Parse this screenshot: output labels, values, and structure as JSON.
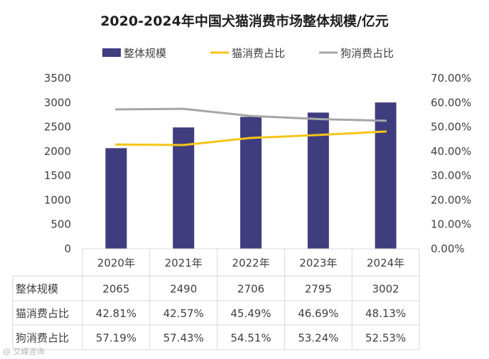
{
  "chart_data": {
    "type": "bar",
    "title": "2020-2024年中国犬猫消费市场整体规模/亿元",
    "categories": [
      "2020年",
      "2021年",
      "2022年",
      "2023年",
      "2024年"
    ],
    "series": [
      {
        "name": "整体规模",
        "kind": "bar",
        "axis": "left",
        "color": "#3f3d7e",
        "values": [
          2065,
          2490,
          2706,
          2795,
          3002
        ],
        "labels": [
          "2065",
          "2490",
          "2706",
          "2795",
          "3002"
        ]
      },
      {
        "name": "猫消费占比",
        "kind": "line",
        "axis": "right",
        "color": "#f5c518",
        "values": [
          42.81,
          42.57,
          45.49,
          46.69,
          48.13
        ],
        "labels": [
          "42.81%",
          "42.57%",
          "45.49%",
          "46.69%",
          "48.13%"
        ]
      },
      {
        "name": "狗消费占比",
        "kind": "line",
        "axis": "right",
        "color": "#a6a6a6",
        "values": [
          57.19,
          57.43,
          54.51,
          53.24,
          52.53
        ],
        "labels": [
          "57.19%",
          "57.43%",
          "54.51%",
          "53.24%",
          "52.53%"
        ]
      }
    ],
    "y_left": {
      "min": 0,
      "max": 3500,
      "ticks": [
        "0",
        "500",
        "1000",
        "1500",
        "2000",
        "2500",
        "3000",
        "3500"
      ]
    },
    "y_right": {
      "min": 0,
      "max": 70,
      "ticks": [
        "0.00%",
        "10.00%",
        "20.00%",
        "30.00%",
        "40.00%",
        "50.00%",
        "60.00%",
        "70.00%"
      ]
    },
    "legend_position": "top",
    "data_table": true
  },
  "watermark": "@ 艾媒咨询"
}
